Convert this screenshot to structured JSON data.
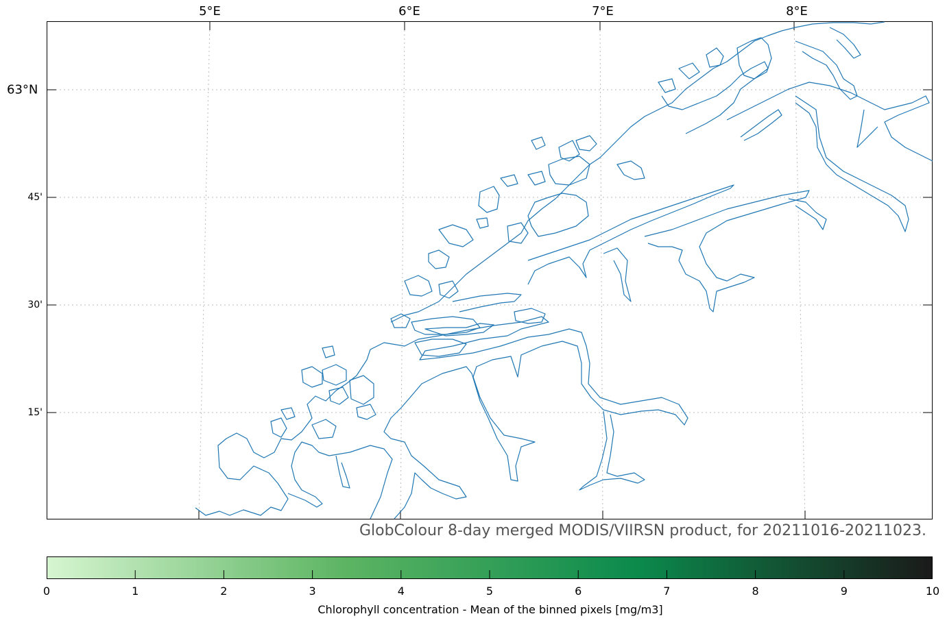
{
  "map": {
    "lon_labels": [
      "5°E",
      "6°E",
      "7°E",
      "8°E"
    ],
    "lat_labels": [
      "63°N",
      "45'",
      "30'",
      "15'"
    ],
    "coastline_color": "#1f77b4",
    "grid": true
  },
  "caption": "GlobColour 8-day merged MODIS/VIIRSN product, for 20211016-20211023.",
  "colorbar": {
    "label": "Chlorophyll concentration - Mean of the binned pixels  [mg/m3]",
    "ticks": [
      "0",
      "1",
      "2",
      "3",
      "4",
      "5",
      "6",
      "7",
      "8",
      "9",
      "10"
    ],
    "range": [
      0,
      10
    ],
    "colors": [
      "#d6f5d0",
      "#5db563",
      "#0b8a4c",
      "#1a1a1a"
    ]
  }
}
